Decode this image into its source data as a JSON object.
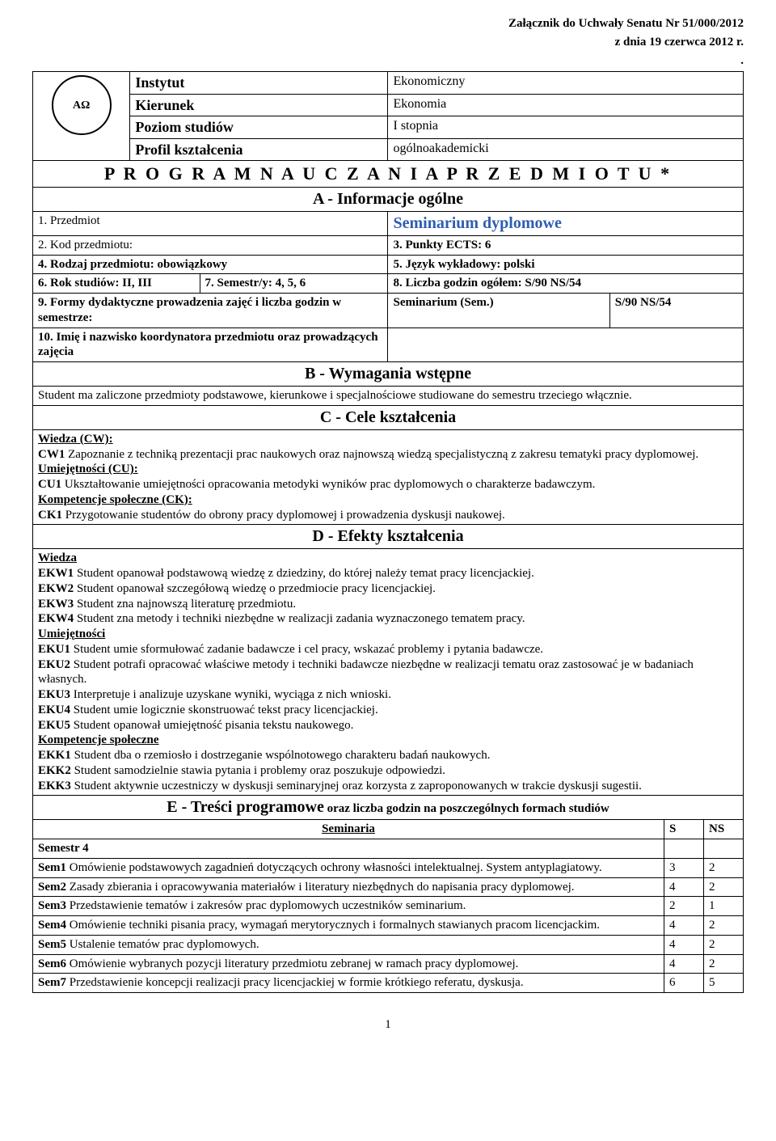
{
  "attachment": {
    "line1": "Załącznik do Uchwały Senatu Nr 51/000/2012",
    "line2": "z dnia 19 czerwca 2012 r.",
    "dot": "."
  },
  "headerTable": {
    "logo_text": "AΩ",
    "rows": [
      {
        "label": "Instytut",
        "value": "Ekonomiczny"
      },
      {
        "label": "Kierunek",
        "value": "Ekonomia"
      },
      {
        "label": "Poziom studiów",
        "value": "I stopnia"
      },
      {
        "label": "Profil kształcenia",
        "value": "ogólnoakademicki"
      }
    ]
  },
  "program_title": "P R O G R A M   N A U C Z A N I A   P R Z E D M I O T U  *",
  "sectionA": "A - Informacje ogólne",
  "rowA1": {
    "left": "1. Przedmiot",
    "right": "Seminarium dyplomowe"
  },
  "rowA2": {
    "left": "2. Kod przedmiotu:",
    "right_label": "3. Punkty ECTS:",
    "right_value": "6"
  },
  "rowA3": {
    "left": "4. Rodzaj przedmiotu: obowiązkowy",
    "right": "5. Język wykładowy:  polski"
  },
  "rowA4": {
    "c1": "6. Rok studiów: II, III",
    "c2": "7. Semestr/y: 4, 5, 6",
    "c3": "8. Liczba godzin ogółem:  S/90 NS/54"
  },
  "rowA5": {
    "left": "9. Formy dydaktyczne prowadzenia zajęć i liczba godzin w semestrze:",
    "mid": "Seminarium (Sem.)",
    "right": "S/90 NS/54"
  },
  "rowA6": {
    "left": "10. Imię i nazwisko koordynatora przedmiotu oraz prowadzących zajęcia"
  },
  "sectionB": "B - Wymagania wstępne",
  "sectionB_text": "Student ma zaliczone przedmioty podstawowe, kierunkowe i specjalnościowe studiowane do semestru trzeciego włącznie.",
  "sectionC": "C - Cele kształcenia",
  "cw_label": "Wiedza (CW):",
  "cw_text": "CW1 Zapoznanie z techniką prezentacji prac naukowych oraz najnowszą wiedzą specjalistyczną z zakresu tematyki pracy dyplomowej.",
  "cu_label": "Umiejętności (CU):",
  "cu_text": "CU1 Ukształtowanie umiejętności opracowania metodyki wyników prac dyplomowych o charakterze badawczym.",
  "ck_label": "Kompetencje społeczne (CK):",
  "ck_text": "CK1 Przygotowanie studentów do obrony pracy dyplomowej i prowadzenia dyskusji naukowej.",
  "sectionD": "D - Efekty kształcenia",
  "d_wiedza_label": "Wiedza",
  "d_wiedza": [
    "EKW1 Student opanował podstawową wiedzę z dziedziny, do której należy temat pracy licencjackiej.",
    "EKW2 Student opanował szczegółową wiedzę o przedmiocie pracy licencjackiej.",
    "EKW3 Student zna najnowszą literaturę przedmiotu.",
    "EKW4 Student zna metody i techniki niezbędne w realizacji zadania wyznaczonego tematem pracy."
  ],
  "d_umie_label": "Umiejętności",
  "d_umie": [
    "EKU1 Student umie sformułować zadanie badawcze i cel pracy, wskazać problemy i pytania badawcze.",
    "EKU2 Student potrafi opracować właściwe metody i techniki badawcze niezbędne w realizacji tematu oraz zastosować je w badaniach własnych.",
    "EKU3 Interpretuje i analizuje uzyskane wyniki, wyciąga z nich wnioski.",
    "EKU4 Student umie logicznie skonstruować tekst pracy licencjackiej.",
    "EKU5 Student opanował umiejętność pisania tekstu naukowego."
  ],
  "d_komp_label": "Kompetencje społeczne",
  "d_komp": [
    "EKK1 Student dba o rzemiosło i dostrzeganie wspólnotowego charakteru badań naukowych.",
    "EKK2 Student samodzielnie stawia pytania i problemy oraz poszukuje odpowiedzi.",
    "EKK3 Student aktywnie uczestniczy w dyskusji seminaryjnej oraz korzysta z zaproponowanych w trakcie dyskusji sugestii."
  ],
  "sectionE_prefix": "E - Treści programowe",
  "sectionE_suffix": " oraz liczba godzin na poszczególnych formach studiów",
  "semTable": {
    "head": {
      "title": "Seminaria",
      "s": "S",
      "ns": "NS"
    },
    "semester_label": "Semestr 4",
    "rows": [
      {
        "label": "Sem1",
        "text": " Omówienie podstawowych zagadnień dotyczących ochrony własności intelektualnej. System antyplagiatowy.",
        "s": "3",
        "ns": "2"
      },
      {
        "label": "Sem2",
        "text": " Zasady zbierania i opracowywania materiałów i literatury niezbędnych do napisania pracy dyplomowej.",
        "s": "4",
        "ns": "2"
      },
      {
        "label": "Sem3",
        "text": " Przedstawienie tematów i zakresów prac dyplomowych uczestników seminarium.",
        "s": "2",
        "ns": "1"
      },
      {
        "label": "Sem4",
        "text": " Omówienie techniki pisania pracy, wymagań merytorycznych i formalnych stawianych pracom licencjackim.",
        "s": "4",
        "ns": "2"
      },
      {
        "label": "Sem5",
        "text": " Ustalenie tematów prac dyplomowych.",
        "s": "4",
        "ns": "2"
      },
      {
        "label": "Sem6",
        "text": " Omówienie wybranych pozycji literatury przedmiotu zebranej w ramach pracy dyplomowej.",
        "s": "4",
        "ns": "2"
      },
      {
        "label": "Sem7",
        "text": " Przedstawienie koncepcji realizacji pracy licencjackiej w formie krótkiego referatu, dyskusja.",
        "s": "6",
        "ns": "5"
      }
    ]
  },
  "page_number": "1"
}
